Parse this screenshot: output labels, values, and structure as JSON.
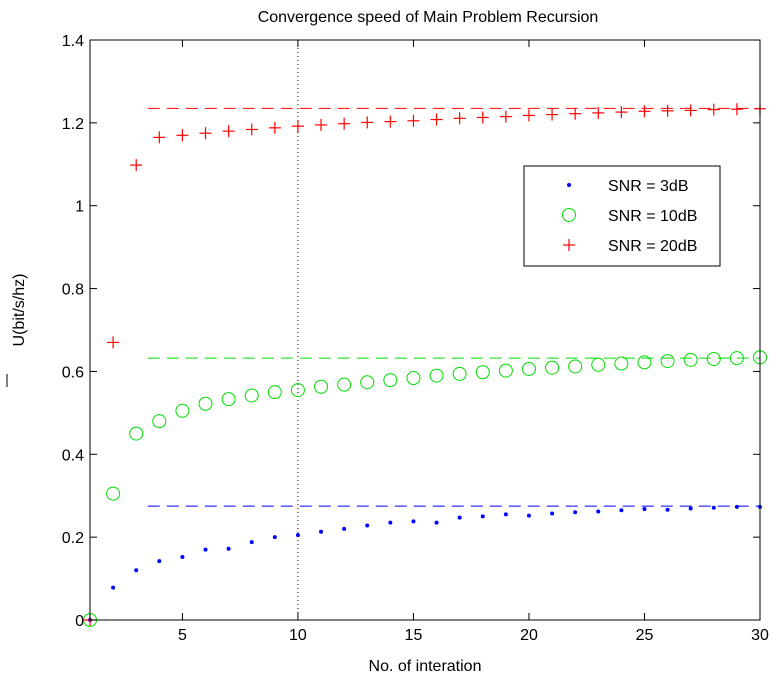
{
  "chart_data": {
    "type": "scatter",
    "title": "Convergence speed of Main Problem Recursion",
    "xlabel": "No. of interation",
    "ylabel": "U(bit/s/hz)",
    "xlim": [
      1,
      30
    ],
    "ylim": [
      0,
      1.4
    ],
    "xticks": [
      5,
      10,
      15,
      20,
      25,
      30
    ],
    "yticks": [
      0,
      0.2,
      0.4,
      0.6,
      0.8,
      1,
      1.2,
      1.4
    ],
    "ytick_labels": [
      "0",
      "0.2",
      "0.4",
      "0.6",
      "0.8",
      "1",
      "1.2",
      "1.4"
    ],
    "grid": false,
    "legend_position": "upper-right",
    "vline": {
      "x": 10,
      "style": "dotted",
      "color": "#000000"
    },
    "x": [
      1,
      2,
      3,
      4,
      5,
      6,
      7,
      8,
      9,
      10,
      11,
      12,
      13,
      14,
      15,
      16,
      17,
      18,
      19,
      20,
      21,
      22,
      23,
      24,
      25,
      26,
      27,
      28,
      29,
      30
    ],
    "series": [
      {
        "name": "SNR = 3dB",
        "marker": "dot",
        "color": "#0000ff",
        "values": [
          0,
          0.078,
          0.12,
          0.142,
          0.152,
          0.17,
          0.172,
          0.188,
          0.2,
          0.205,
          0.213,
          0.22,
          0.228,
          0.235,
          0.238,
          0.235,
          0.247,
          0.25,
          0.255,
          0.252,
          0.257,
          0.26,
          0.262,
          0.265,
          0.268,
          0.266,
          0.269,
          0.271,
          0.273,
          0.273
        ],
        "limit": 0.275
      },
      {
        "name": "SNR = 10dB",
        "marker": "circle",
        "color": "#00dd00",
        "values": [
          0,
          0.305,
          0.45,
          0.48,
          0.505,
          0.522,
          0.533,
          0.542,
          0.55,
          0.555,
          0.563,
          0.568,
          0.574,
          0.579,
          0.584,
          0.59,
          0.594,
          0.598,
          0.602,
          0.606,
          0.609,
          0.612,
          0.616,
          0.619,
          0.622,
          0.625,
          0.628,
          0.63,
          0.632,
          0.634
        ],
        "limit": 0.632
      },
      {
        "name": "SNR = 20dB",
        "marker": "plus",
        "color": "#ff0000",
        "values": [
          0,
          0.67,
          1.098,
          1.165,
          1.17,
          1.175,
          1.18,
          1.184,
          1.188,
          1.192,
          1.195,
          1.198,
          1.201,
          1.203,
          1.205,
          1.208,
          1.211,
          1.213,
          1.215,
          1.218,
          1.22,
          1.222,
          1.224,
          1.226,
          1.228,
          1.229,
          1.23,
          1.232,
          1.233,
          1.234
        ],
        "limit": 1.235
      }
    ]
  }
}
